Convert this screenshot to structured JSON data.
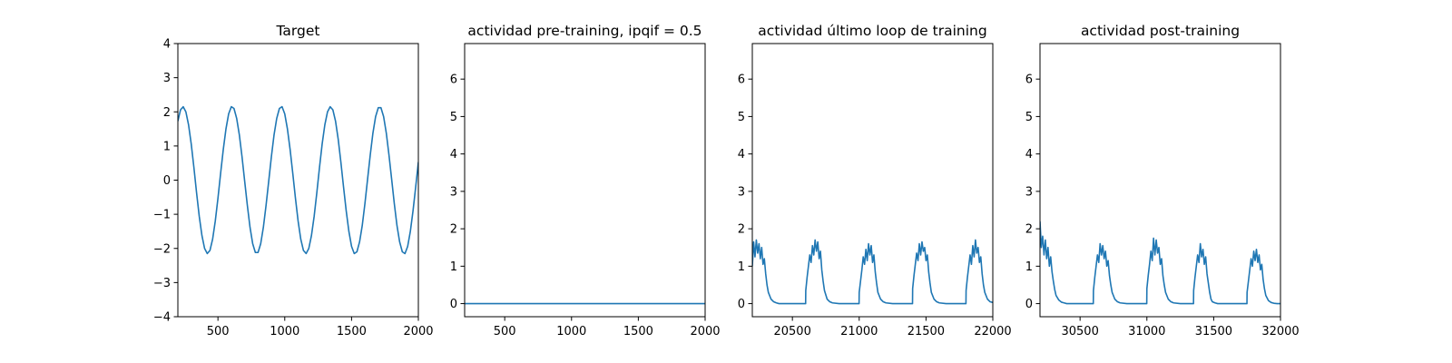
{
  "colors": {
    "series": "#1f77b4",
    "axes": "#000000",
    "background": "#ffffff"
  },
  "chart_data": [
    {
      "type": "line",
      "title": "Target",
      "xlim": [
        200,
        2000
      ],
      "ylim": [
        -4,
        4
      ],
      "xticks": [
        500,
        1000,
        1500,
        2000
      ],
      "yticks": [
        -4,
        -3,
        -2,
        -1,
        0,
        1,
        2,
        3,
        4
      ],
      "xticklabels": [
        "500",
        "1000",
        "1500",
        "2000"
      ],
      "yticklabels": [
        "−4",
        "−3",
        "−2",
        "−1",
        "0",
        "1",
        "2",
        "3",
        "4"
      ],
      "series": [
        {
          "x": [
            200,
            220,
            240,
            260,
            280,
            300,
            320,
            340,
            360,
            380,
            400,
            420,
            440,
            460,
            480,
            500,
            520,
            540,
            560,
            580,
            600,
            620,
            640,
            660,
            680,
            700,
            720,
            740,
            760,
            780,
            800,
            820,
            840,
            860,
            880,
            900,
            920,
            940,
            960,
            980,
            1000,
            1020,
            1040,
            1060,
            1080,
            1100,
            1120,
            1140,
            1160,
            1180,
            1200,
            1220,
            1240,
            1260,
            1280,
            1300,
            1320,
            1340,
            1360,
            1380,
            1400,
            1420,
            1440,
            1460,
            1480,
            1500,
            1520,
            1540,
            1560,
            1580,
            1600,
            1620,
            1640,
            1660,
            1680,
            1700,
            1720,
            1740,
            1760,
            1780,
            1800,
            1820,
            1840,
            1860,
            1880,
            1900,
            1920,
            1940,
            1960,
            1980,
            2000
          ],
          "y": [
            1.73,
            2.06,
            2.15,
            2.0,
            1.62,
            1.06,
            0.37,
            -0.37,
            -1.06,
            -1.62,
            -2.0,
            -2.15,
            -2.06,
            -1.73,
            -1.2,
            -0.53,
            0.2,
            0.9,
            1.5,
            1.94,
            2.15,
            2.1,
            1.81,
            1.33,
            0.69,
            -0.03,
            -0.74,
            -1.38,
            -1.86,
            -2.12,
            -2.12,
            -1.86,
            -1.38,
            -0.74,
            -0.03,
            0.69,
            1.33,
            1.81,
            2.1,
            2.15,
            1.94,
            1.5,
            0.9,
            0.2,
            -0.53,
            -1.2,
            -1.73,
            -2.06,
            -2.15,
            -2.0,
            -1.62,
            -1.06,
            -0.37,
            0.37,
            1.06,
            1.62,
            2.0,
            2.15,
            2.06,
            1.73,
            1.2,
            0.53,
            -0.2,
            -0.9,
            -1.5,
            -1.94,
            -2.15,
            -2.1,
            -1.81,
            -1.33,
            -0.69,
            0.03,
            0.74,
            1.38,
            1.86,
            2.12,
            2.12,
            1.86,
            1.38,
            0.74,
            0.03,
            -0.69,
            -1.33,
            -1.81,
            -2.1,
            -2.15,
            -1.94,
            -1.5,
            -0.9,
            -0.2,
            0.53
          ]
        }
      ]
    },
    {
      "type": "line",
      "title": "actividad pre-training, ipqif = 0.5",
      "xlim": [
        200,
        2000
      ],
      "ylim": [
        -0.35,
        6.95
      ],
      "xticks": [
        500,
        1000,
        1500,
        2000
      ],
      "yticks": [
        0,
        1,
        2,
        3,
        4,
        5,
        6
      ],
      "xticklabels": [
        "500",
        "1000",
        "1500",
        "2000"
      ],
      "yticklabels": [
        "0",
        "1",
        "2",
        "3",
        "4",
        "5",
        "6"
      ],
      "series": [
        {
          "x": [
            200,
            2000
          ],
          "y": [
            0.0,
            0.0
          ]
        }
      ]
    },
    {
      "type": "line",
      "title": "actividad último loop de training",
      "xlim": [
        20200,
        22000
      ],
      "ylim": [
        -0.35,
        6.95
      ],
      "xticks": [
        20500,
        21000,
        21500,
        22000
      ],
      "yticks": [
        0,
        1,
        2,
        3,
        4,
        5,
        6
      ],
      "xticklabels": [
        "20500",
        "21000",
        "21500",
        "22000"
      ],
      "yticklabels": [
        "0",
        "1",
        "2",
        "3",
        "4",
        "5",
        "6"
      ],
      "series": [
        {
          "x": [
            20200,
            20210,
            20220,
            20230,
            20240,
            20250,
            20260,
            20270,
            20280,
            20290,
            20300,
            20310,
            20320,
            20340,
            20360,
            20380,
            20400,
            20450,
            20500,
            20550,
            20599,
            20600,
            20610,
            20620,
            20630,
            20640,
            20650,
            20660,
            20670,
            20680,
            20690,
            20700,
            20710,
            20720,
            20730,
            20740,
            20760,
            20780,
            20800,
            20850,
            20900,
            20950,
            20999,
            21000,
            21010,
            21020,
            21030,
            21040,
            21050,
            21060,
            21070,
            21080,
            21090,
            21100,
            21110,
            21120,
            21130,
            21140,
            21160,
            21180,
            21200,
            21250,
            21300,
            21350,
            21399,
            21400,
            21410,
            21420,
            21430,
            21440,
            21450,
            21460,
            21470,
            21480,
            21490,
            21500,
            21510,
            21520,
            21530,
            21540,
            21560,
            21580,
            21600,
            21650,
            21700,
            21750,
            21799,
            21800,
            21810,
            21820,
            21830,
            21840,
            21850,
            21860,
            21870,
            21880,
            21890,
            21900,
            21910,
            21920,
            21930,
            21940,
            21960,
            21980,
            22000
          ],
          "y": [
            1.0,
            1.65,
            1.25,
            1.7,
            1.35,
            1.6,
            1.2,
            1.5,
            1.05,
            1.2,
            0.8,
            0.5,
            0.3,
            0.12,
            0.05,
            0.02,
            0.0,
            0.0,
            0.0,
            0.0,
            0.0,
            0.35,
            0.7,
            1.0,
            1.3,
            1.1,
            1.55,
            1.3,
            1.7,
            1.4,
            1.65,
            1.2,
            1.4,
            0.9,
            0.6,
            0.35,
            0.12,
            0.05,
            0.02,
            0.0,
            0.0,
            0.0,
            0.0,
            0.3,
            0.6,
            0.9,
            1.25,
            1.05,
            1.45,
            1.15,
            1.6,
            1.3,
            1.55,
            1.1,
            1.3,
            0.85,
            0.55,
            0.3,
            0.12,
            0.05,
            0.02,
            0.0,
            0.0,
            0.0,
            0.0,
            0.4,
            0.75,
            1.05,
            1.35,
            1.15,
            1.6,
            1.3,
            1.65,
            1.4,
            1.5,
            1.15,
            1.3,
            0.85,
            0.55,
            0.3,
            0.12,
            0.05,
            0.02,
            0.0,
            0.0,
            0.0,
            0.0,
            0.35,
            0.7,
            1.0,
            1.3,
            1.05,
            1.55,
            1.25,
            1.7,
            1.35,
            1.5,
            1.1,
            1.25,
            0.8,
            0.5,
            0.3,
            0.12,
            0.05,
            0.03
          ]
        }
      ]
    },
    {
      "type": "line",
      "title": "actividad post-training",
      "xlim": [
        30200,
        32000
      ],
      "ylim": [
        -0.35,
        6.95
      ],
      "xticks": [
        30500,
        31000,
        31500,
        32000
      ],
      "yticks": [
        0,
        1,
        2,
        3,
        4,
        5,
        6
      ],
      "xticklabels": [
        "30500",
        "31000",
        "31500",
        "32000"
      ],
      "yticklabels": [
        "0",
        "1",
        "2",
        "3",
        "4",
        "5",
        "6"
      ],
      "series": [
        {
          "x": [
            30200,
            30210,
            30220,
            30230,
            30240,
            30250,
            30260,
            30270,
            30280,
            30290,
            30300,
            30310,
            30320,
            30340,
            30360,
            30380,
            30400,
            30450,
            30500,
            30550,
            30599,
            30600,
            30610,
            30620,
            30630,
            30640,
            30650,
            30660,
            30670,
            30680,
            30690,
            30700,
            30710,
            30720,
            30730,
            30740,
            30760,
            30780,
            30800,
            30850,
            30900,
            30950,
            30999,
            31000,
            31010,
            31020,
            31030,
            31040,
            31050,
            31060,
            31070,
            31080,
            31090,
            31100,
            31110,
            31120,
            31130,
            31140,
            31160,
            31180,
            31200,
            31250,
            31300,
            31349,
            31350,
            31360,
            31370,
            31380,
            31390,
            31400,
            31410,
            31420,
            31430,
            31440,
            31450,
            31460,
            31470,
            31480,
            31490,
            31510,
            31530,
            31550,
            31600,
            31650,
            31700,
            31749,
            31750,
            31760,
            31770,
            31780,
            31790,
            31800,
            31810,
            31820,
            31830,
            31840,
            31850,
            31860,
            31870,
            31880,
            31890,
            31910,
            31930,
            31950,
            31975,
            32000
          ],
          "y": [
            2.2,
            1.5,
            1.8,
            1.3,
            1.7,
            1.2,
            1.5,
            1.0,
            1.25,
            0.85,
            0.6,
            0.38,
            0.22,
            0.1,
            0.04,
            0.02,
            0.0,
            0.0,
            0.0,
            0.0,
            0.0,
            0.35,
            0.7,
            1.0,
            1.3,
            1.1,
            1.6,
            1.3,
            1.55,
            1.2,
            1.4,
            1.0,
            1.15,
            0.75,
            0.5,
            0.3,
            0.12,
            0.05,
            0.02,
            0.0,
            0.0,
            0.0,
            0.0,
            0.4,
            0.75,
            1.05,
            1.4,
            1.15,
            1.75,
            1.3,
            1.7,
            1.35,
            1.5,
            1.05,
            1.2,
            0.75,
            0.5,
            0.3,
            0.12,
            0.05,
            0.02,
            0.0,
            0.0,
            0.0,
            0.35,
            0.7,
            1.0,
            1.3,
            1.1,
            1.6,
            1.25,
            1.45,
            1.05,
            1.25,
            0.8,
            0.55,
            0.3,
            0.12,
            0.05,
            0.02,
            0.0,
            0.0,
            0.0,
            0.0,
            0.0,
            0.0,
            0.3,
            0.6,
            0.9,
            1.2,
            1.0,
            1.4,
            1.15,
            1.45,
            1.1,
            1.3,
            0.9,
            1.05,
            0.65,
            0.4,
            0.22,
            0.08,
            0.03,
            0.01,
            0.0,
            0.0
          ]
        }
      ]
    }
  ]
}
